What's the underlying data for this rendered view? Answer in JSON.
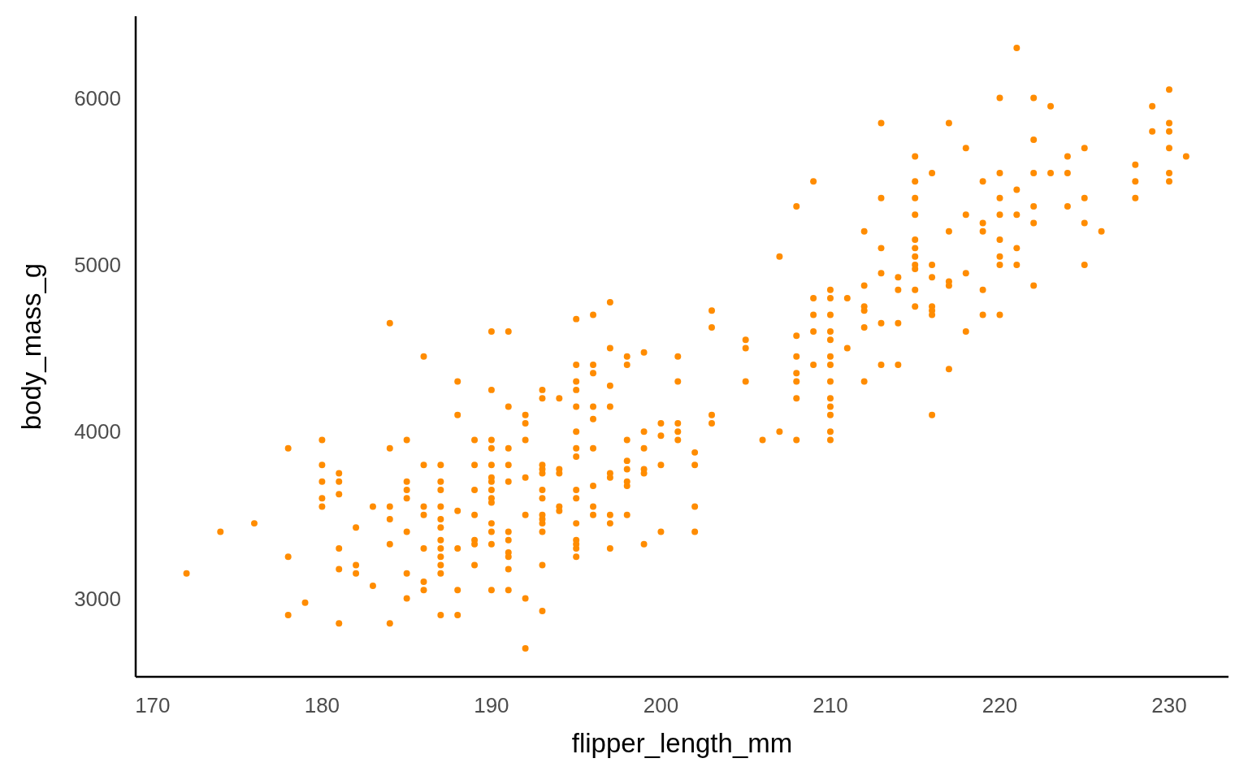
{
  "chart_data": {
    "type": "scatter",
    "xlabel": "flipper_length_mm",
    "ylabel": "body_mass_g",
    "color": "#ff8c00",
    "marker": "circle",
    "grid": false,
    "xlim": [
      169,
      233.5
    ],
    "ylim": [
      2530,
      6490
    ],
    "xticks": [
      170,
      180,
      190,
      200,
      210,
      220,
      230
    ],
    "yticks": [
      3000,
      4000,
      5000,
      6000
    ],
    "x": [
      172,
      174,
      176,
      178,
      178,
      178,
      179,
      180,
      180,
      180,
      180,
      180,
      181,
      181,
      181,
      181,
      181,
      181,
      182,
      182,
      182,
      183,
      183,
      184,
      184,
      184,
      184,
      184,
      184,
      185,
      185,
      185,
      185,
      185,
      185,
      185,
      186,
      186,
      186,
      186,
      186,
      186,
      186,
      187,
      187,
      187,
      187,
      187,
      187,
      187,
      187,
      187,
      187,
      187,
      187,
      188,
      188,
      188,
      188,
      188,
      188,
      189,
      189,
      189,
      189,
      189,
      189,
      189,
      190,
      190,
      190,
      190,
      190,
      190,
      190,
      190,
      190,
      190,
      190,
      190,
      190,
      190,
      191,
      191,
      191,
      191,
      191,
      191,
      191,
      191,
      191,
      191,
      191,
      192,
      192,
      192,
      192,
      192,
      192,
      192,
      193,
      193,
      193,
      193,
      193,
      193,
      193,
      193,
      193,
      193,
      193,
      193,
      193,
      194,
      194,
      194,
      194,
      194,
      195,
      195,
      195,
      195,
      195,
      195,
      195,
      195,
      195,
      195,
      195,
      195,
      195,
      195,
      195,
      196,
      196,
      196,
      196,
      196,
      196,
      196,
      196,
      196,
      197,
      197,
      197,
      197,
      197,
      197,
      197,
      197,
      197,
      198,
      198,
      198,
      198,
      198,
      198,
      198,
      198,
      199,
      199,
      199,
      199,
      199,
      199,
      200,
      200,
      200,
      200,
      201,
      201,
      201,
      201,
      201,
      202,
      202,
      202,
      202,
      203,
      203,
      203,
      203,
      205,
      205,
      205,
      206,
      207,
      207,
      208,
      208,
      208,
      208,
      208,
      208,
      208,
      209,
      209,
      209,
      209,
      209,
      210,
      210,
      210,
      210,
      210,
      210,
      210,
      210,
      210,
      210,
      210,
      210,
      210,
      211,
      211,
      212,
      212,
      212,
      212,
      212,
      212,
      213,
      213,
      213,
      213,
      213,
      213,
      214,
      214,
      214,
      214,
      215,
      215,
      215,
      215,
      215,
      215,
      215,
      215,
      215,
      215,
      215,
      216,
      216,
      216,
      216,
      216,
      216,
      216,
      217,
      217,
      217,
      217,
      217,
      218,
      218,
      218,
      218,
      219,
      219,
      219,
      219,
      219,
      220,
      220,
      220,
      220,
      220,
      220,
      220,
      220,
      221,
      221,
      221,
      221,
      221,
      222,
      222,
      222,
      222,
      222,
      222,
      223,
      223,
      224,
      224,
      224,
      225,
      225,
      225,
      225,
      226,
      228,
      228,
      228,
      229,
      229,
      230,
      230,
      230,
      230,
      230,
      230,
      231
    ],
    "values": [
      3150,
      3400,
      3450,
      3900,
      3250,
      2900,
      2975,
      3950,
      3800,
      3700,
      3600,
      3550,
      3750,
      3700,
      3625,
      3300,
      3175,
      2850,
      3425,
      3200,
      3150,
      3550,
      3075,
      4650,
      3900,
      3550,
      3475,
      3325,
      2850,
      3950,
      3700,
      3650,
      3600,
      3400,
      3150,
      3000,
      4450,
      3800,
      3550,
      3500,
      3300,
      3100,
      3050,
      3800,
      3700,
      3650,
      3550,
      3475,
      3425,
      3350,
      3300,
      3250,
      3200,
      3150,
      2900,
      4300,
      4100,
      3525,
      3300,
      3050,
      2900,
      3950,
      3800,
      3650,
      3500,
      3350,
      3325,
      3200,
      4600,
      4250,
      3950,
      3900,
      3800,
      3725,
      3700,
      3650,
      3600,
      3575,
      3450,
      3400,
      3325,
      3050,
      4600,
      4150,
      3900,
      3800,
      3700,
      3400,
      3350,
      3275,
      3250,
      3175,
      3050,
      4100,
      4050,
      3950,
      3725,
      3500,
      3000,
      2700,
      4250,
      4200,
      3800,
      3775,
      3750,
      3650,
      3600,
      3500,
      3475,
      3450,
      3400,
      3200,
      2925,
      4200,
      3775,
      3750,
      3550,
      3525,
      4675,
      4400,
      4300,
      4250,
      4150,
      4000,
      3900,
      3850,
      3650,
      3600,
      3450,
      3350,
      3325,
      3300,
      3250,
      4700,
      4400,
      4350,
      4150,
      4075,
      3900,
      3675,
      3550,
      3500,
      4775,
      4500,
      4275,
      4150,
      3750,
      3725,
      3500,
      3450,
      3300,
      4450,
      4400,
      3950,
      3825,
      3775,
      3700,
      3675,
      3500,
      4475,
      4000,
      3900,
      3775,
      3750,
      3325,
      4050,
      3975,
      3800,
      3400,
      4450,
      4300,
      4050,
      4000,
      3950,
      3875,
      3800,
      3550,
      3400,
      4725,
      4625,
      4100,
      4050,
      4550,
      4500,
      4300,
      3950,
      5050,
      4000,
      5350,
      4575,
      4450,
      4350,
      4300,
      4200,
      3950,
      5500,
      4800,
      4700,
      4600,
      4400,
      4850,
      4800,
      4700,
      4600,
      4550,
      4450,
      4400,
      4300,
      4200,
      4150,
      4100,
      4000,
      3950,
      4800,
      4500,
      5200,
      4875,
      4750,
      4725,
      4625,
      4300,
      5850,
      5400,
      5100,
      4950,
      4650,
      4400,
      4925,
      4850,
      4650,
      4400,
      5650,
      5500,
      5400,
      5300,
      5150,
      5100,
      5050,
      5000,
      4975,
      4850,
      4750,
      5550,
      5000,
      4925,
      4750,
      4725,
      4700,
      4100,
      5850,
      5200,
      4900,
      4875,
      4375,
      5700,
      5300,
      4950,
      4600,
      5500,
      5250,
      5200,
      4850,
      4700,
      6000,
      5550,
      5400,
      5300,
      5150,
      5050,
      5000,
      4700,
      6300,
      5450,
      5300,
      5100,
      5000,
      6000,
      5750,
      5550,
      5350,
      5250,
      4875,
      5950,
      5550,
      5650,
      5550,
      5350,
      5700,
      5400,
      5250,
      5000,
      5200,
      5600,
      5500,
      5400,
      5950,
      5800,
      6050,
      5850,
      5800,
      5700,
      5550,
      5500,
      5650
    ]
  }
}
